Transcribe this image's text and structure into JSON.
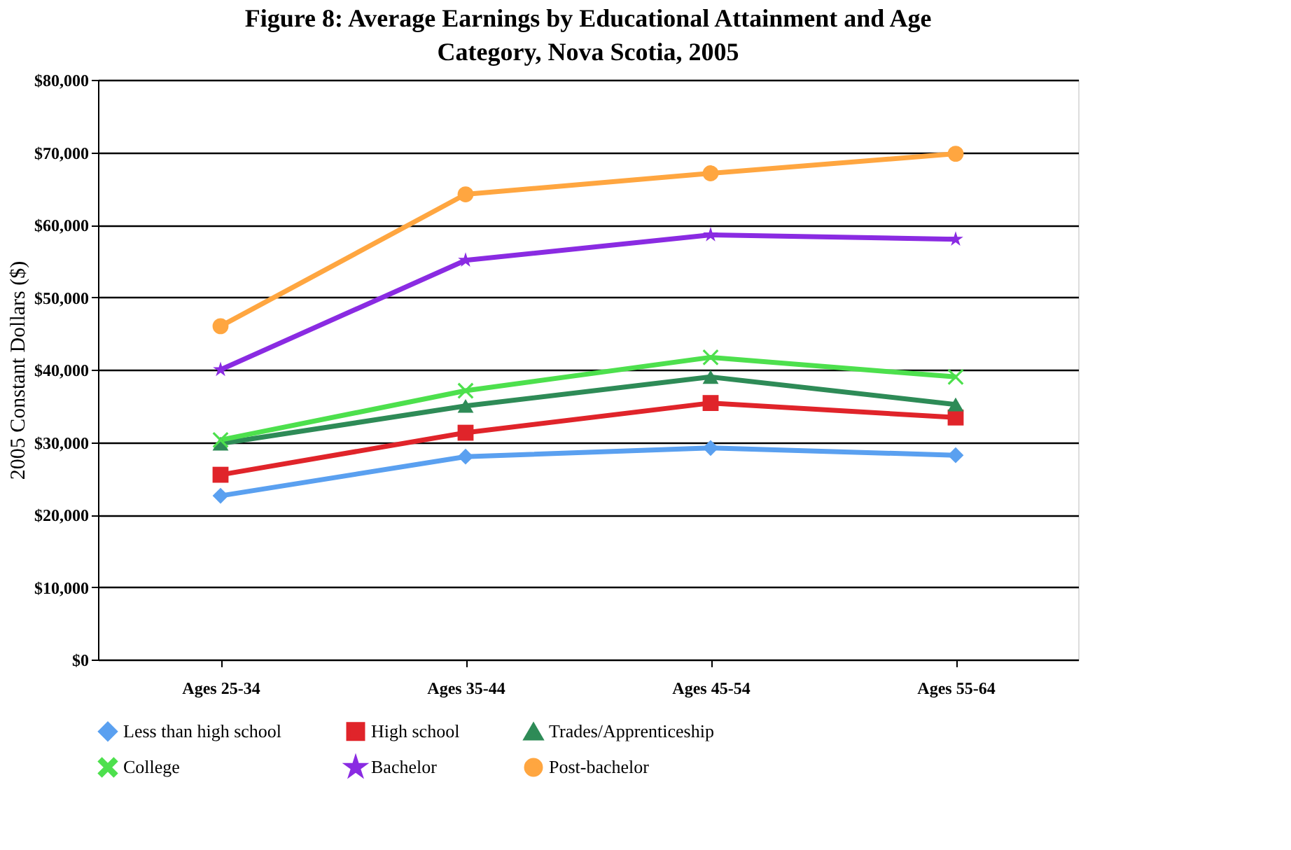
{
  "chart_data": {
    "type": "line",
    "title": "Figure 8: Average Earnings by Educational Attainment and Age Category, Nova Scotia, 2005",
    "ylabel": "2005 Constant Dollars ($)",
    "categories": [
      "Ages 25-34",
      "Ages 35-44",
      "Ages 45-54",
      "Ages 55-64"
    ],
    "series": [
      {
        "name": "Less than high school",
        "color": "#5aa0f0",
        "marker": "diamond",
        "values": [
          22600,
          28000,
          29200,
          28200
        ]
      },
      {
        "name": "High school",
        "color": "#e0242a",
        "marker": "square",
        "values": [
          25500,
          31300,
          35400,
          33400
        ]
      },
      {
        "name": "Trades/Apprenticeship",
        "color": "#2e8b57",
        "marker": "triangle",
        "values": [
          29800,
          35000,
          39000,
          35200
        ]
      },
      {
        "name": "College",
        "color": "#4de04d",
        "marker": "cross",
        "values": [
          30300,
          37100,
          41700,
          39000
        ]
      },
      {
        "name": "Bachelor",
        "color": "#8a2be2",
        "marker": "star",
        "values": [
          40000,
          55100,
          58600,
          58000
        ]
      },
      {
        "name": "Post-bachelor",
        "color": "#ffa640",
        "marker": "circle",
        "values": [
          46000,
          64200,
          67100,
          69800
        ]
      }
    ],
    "ylim": [
      0,
      80000
    ],
    "yticks": [
      {
        "value": 0,
        "label": "$0"
      },
      {
        "value": 10000,
        "label": "$10,000"
      },
      {
        "value": 20000,
        "label": "$20,000"
      },
      {
        "value": 30000,
        "label": "$30,000"
      },
      {
        "value": 40000,
        "label": "$40,000"
      },
      {
        "value": 50000,
        "label": "$50,000"
      },
      {
        "value": 60000,
        "label": "$60,000"
      },
      {
        "value": 70000,
        "label": "$70,000"
      },
      {
        "value": 80000,
        "label": "$80,000"
      }
    ],
    "grid": "y",
    "legend": "bottom",
    "line_style": "solid"
  }
}
